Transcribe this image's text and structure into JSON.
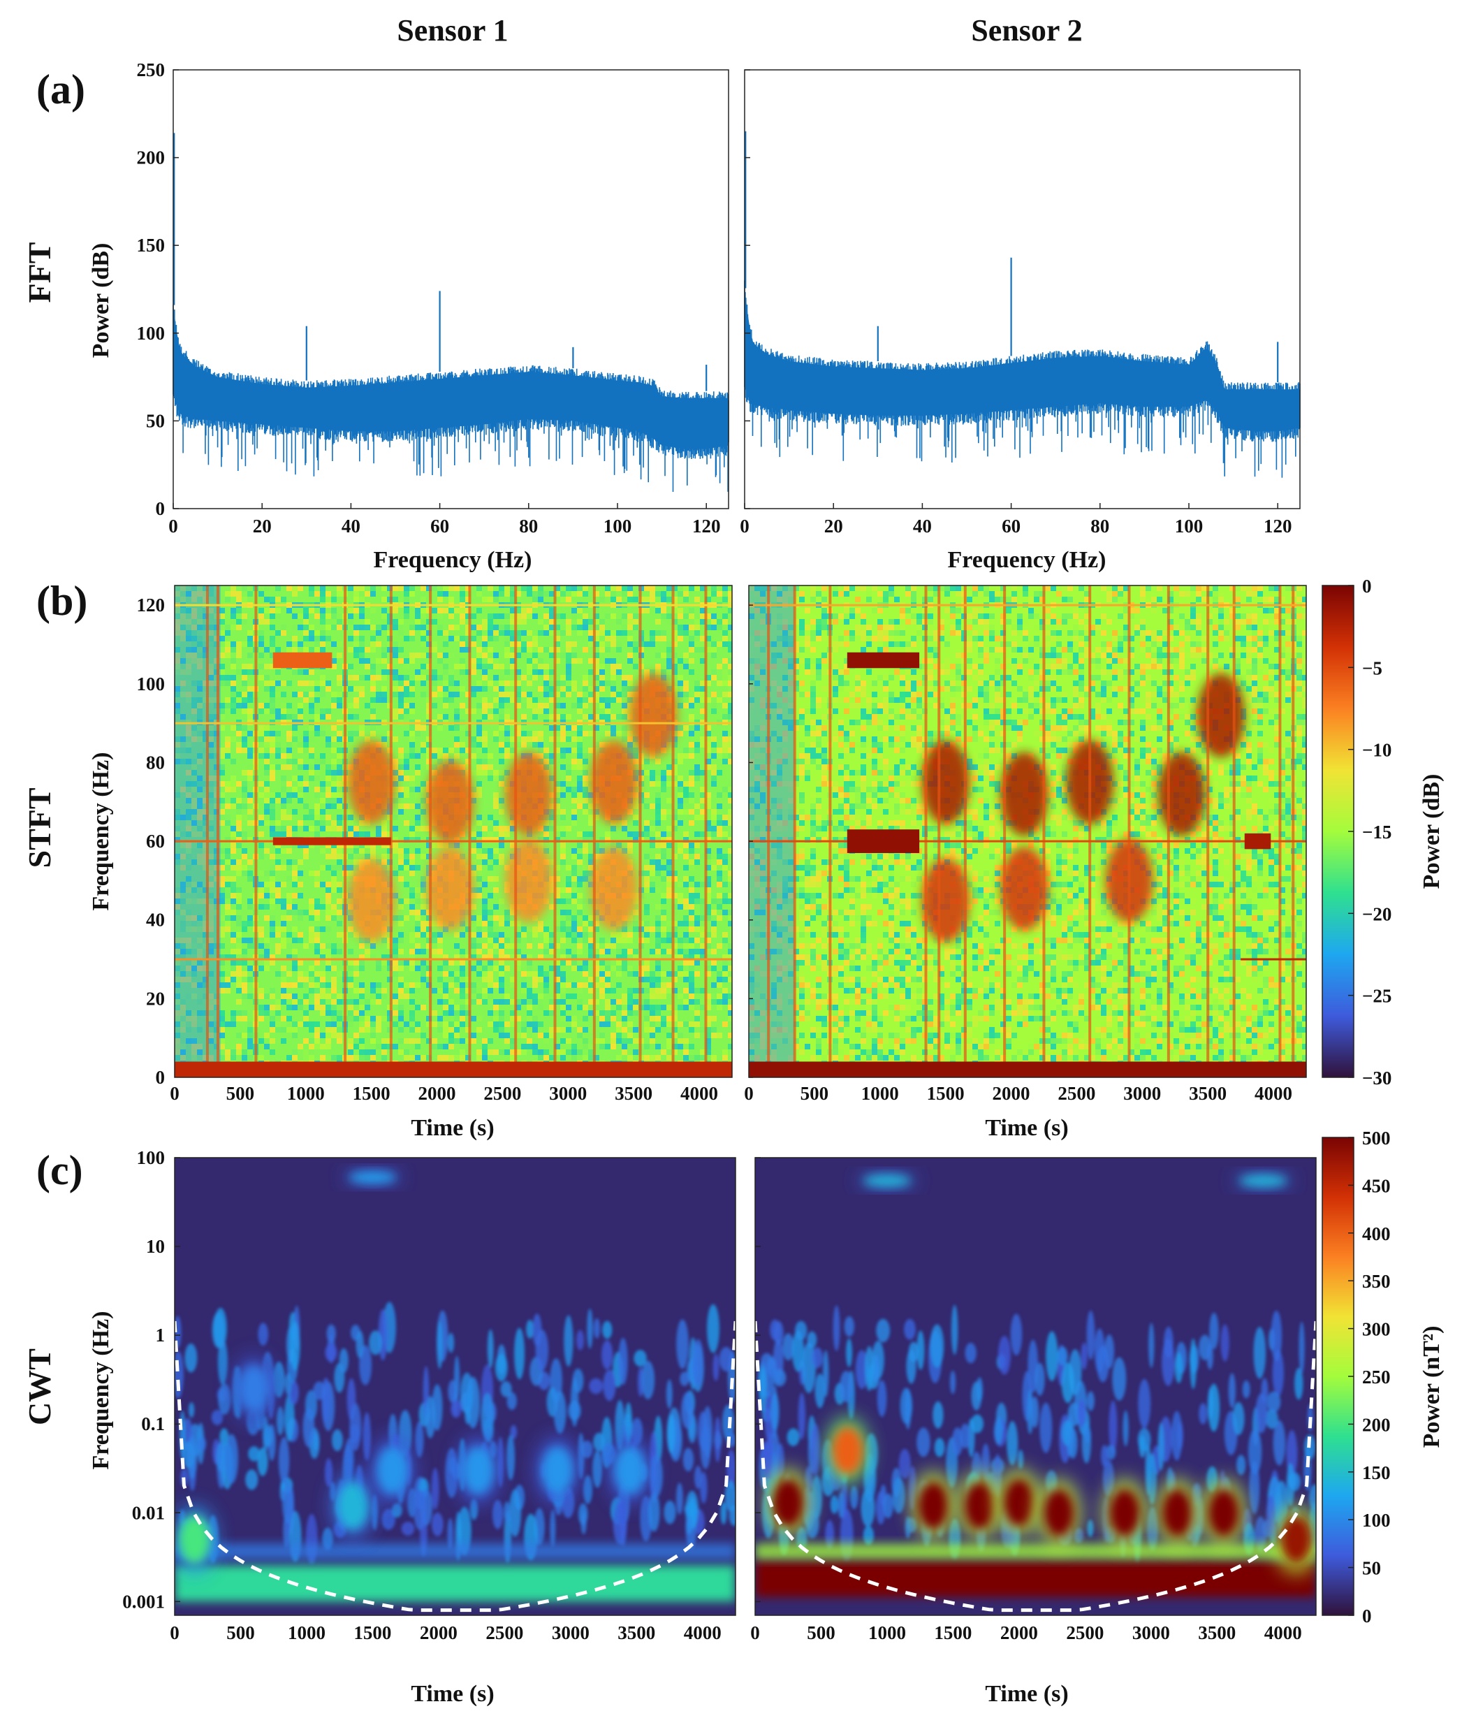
{
  "column_titles": [
    "Sensor 1",
    "Sensor 2"
  ],
  "row_titles": [
    "FFT",
    "STFT",
    "CWT"
  ],
  "panel_labels": [
    "(a)",
    "(b)",
    "(c)"
  ],
  "colors": {
    "fft_line": "#1272bf",
    "dash": "#ffffff",
    "colormap": [
      "#30123b",
      "#3e5bdc",
      "#1ea7f0",
      "#2fe08f",
      "#a4fc3c",
      "#f1e335",
      "#fb8022",
      "#d23105",
      "#7a0403"
    ]
  },
  "chart_data": [
    {
      "id": "fft",
      "type": "line",
      "title": "FFT",
      "xlabel": "Frequency (Hz)",
      "ylabel": "Power (dB)",
      "xlim": [
        0,
        125
      ],
      "ylim": [
        0,
        250
      ],
      "xticks": [
        0,
        20,
        40,
        60,
        80,
        100,
        120
      ],
      "yticks": [
        0,
        50,
        100,
        150,
        200,
        250
      ],
      "series": [
        {
          "name": "Sensor 1",
          "envelope_x": [
            0,
            1,
            2,
            5,
            10,
            20,
            30,
            40,
            50,
            60,
            70,
            80,
            90,
            100,
            105,
            108,
            110,
            115,
            120,
            125
          ],
          "envelope_upper": [
            120,
            100,
            92,
            85,
            79,
            75,
            73,
            74,
            76,
            78,
            80,
            82,
            80,
            77,
            76,
            74,
            68,
            67,
            67,
            67
          ],
          "envelope_lower": [
            60,
            50,
            47,
            45,
            44,
            42,
            40,
            38,
            38,
            40,
            42,
            45,
            44,
            40,
            38,
            34,
            30,
            28,
            28,
            30
          ],
          "peaks": [
            {
              "freq": 0.2,
              "power": 214
            },
            {
              "freq": 30,
              "power": 104
            },
            {
              "freq": 60,
              "power": 124
            },
            {
              "freq": 90,
              "power": 92
            },
            {
              "freq": 120,
              "power": 82
            }
          ]
        },
        {
          "name": "Sensor 2",
          "envelope_x": [
            0,
            1,
            2,
            5,
            10,
            20,
            30,
            40,
            50,
            60,
            70,
            80,
            90,
            100,
            104,
            106,
            108,
            115,
            120,
            125
          ],
          "envelope_upper": [
            130,
            108,
            98,
            92,
            88,
            85,
            84,
            83,
            84,
            87,
            90,
            91,
            88,
            86,
            96,
            88,
            72,
            72,
            72,
            72
          ],
          "envelope_lower": [
            64,
            56,
            53,
            52,
            50,
            48,
            47,
            47,
            48,
            50,
            52,
            54,
            52,
            52,
            56,
            50,
            40,
            38,
            38,
            40
          ],
          "peaks": [
            {
              "freq": 0.2,
              "power": 215
            },
            {
              "freq": 30,
              "power": 104
            },
            {
              "freq": 60,
              "power": 143
            },
            {
              "freq": 120,
              "power": 95
            }
          ]
        }
      ]
    },
    {
      "id": "stft",
      "type": "heatmap",
      "title": "STFT",
      "xlabel": "Time (s)",
      "ylabel": "Frequency (Hz)",
      "xlim": [
        0,
        4250
      ],
      "ylim": [
        0,
        125
      ],
      "xticks": [
        0,
        500,
        1000,
        1500,
        2000,
        2500,
        3000,
        3500,
        4000
      ],
      "yticks": [
        0,
        20,
        40,
        60,
        80,
        100,
        120
      ],
      "colorbar": {
        "label": "Power (dB)",
        "range": [
          -30,
          0
        ],
        "ticks": [
          0,
          -5,
          -10,
          -15,
          -20,
          -25,
          -30
        ]
      },
      "series": [
        {
          "name": "Sensor 1",
          "background_db": -16,
          "horizontal_lines": [
            {
              "freq": 60,
              "t_start": 0,
              "t_end": 4250,
              "db": -6
            },
            {
              "freq": 30,
              "t_start": 0,
              "t_end": 4250,
              "db": -8
            },
            {
              "freq": 90,
              "t_start": 0,
              "t_end": 4250,
              "db": -10
            },
            {
              "freq": 120,
              "t_start": 0,
              "t_end": 4250,
              "db": -11
            }
          ],
          "bands": [
            {
              "t_start": 750,
              "t_end": 1200,
              "f_low": 104,
              "f_high": 108,
              "db": -6
            },
            {
              "t_start": 750,
              "t_end": 1650,
              "f_low": 59,
              "f_high": 61,
              "db": -3
            }
          ],
          "blobs": [
            {
              "t": 1500,
              "f": 75,
              "db": -6
            },
            {
              "t": 1500,
              "f": 45,
              "db": -8
            },
            {
              "t": 2100,
              "f": 70,
              "db": -6
            },
            {
              "t": 2100,
              "f": 48,
              "db": -8
            },
            {
              "t": 2700,
              "f": 72,
              "db": -6
            },
            {
              "t": 2700,
              "f": 50,
              "db": -8
            },
            {
              "t": 3350,
              "f": 75,
              "db": -6
            },
            {
              "t": 3350,
              "f": 48,
              "db": -8
            },
            {
              "t": 3650,
              "f": 92,
              "db": -6
            }
          ],
          "vertical_stripes": [
            250,
            330,
            620,
            1300,
            1650,
            1950,
            2250,
            2600,
            2900,
            3200,
            3550,
            3800,
            4050
          ],
          "low_freq_band_db": -3
        },
        {
          "name": "Sensor 2",
          "background_db": -15,
          "horizontal_lines": [
            {
              "freq": 60,
              "t_start": 0,
              "t_end": 4250,
              "db": -5
            },
            {
              "freq": 30,
              "t_start": 3750,
              "t_end": 4250,
              "db": -3
            },
            {
              "freq": 120,
              "t_start": 0,
              "t_end": 4250,
              "db": -9
            }
          ],
          "bands": [
            {
              "t_start": 750,
              "t_end": 1300,
              "f_low": 104,
              "f_high": 108,
              "db": -1
            },
            {
              "t_start": 750,
              "t_end": 1300,
              "f_low": 57,
              "f_high": 63,
              "db": -1
            },
            {
              "t_start": 3780,
              "t_end": 3980,
              "f_low": 58,
              "f_high": 62,
              "db": -2
            }
          ],
          "blobs": [
            {
              "t": 1500,
              "f": 75,
              "db": -2
            },
            {
              "t": 1500,
              "f": 45,
              "db": -4
            },
            {
              "t": 2100,
              "f": 72,
              "db": -2
            },
            {
              "t": 2100,
              "f": 48,
              "db": -4
            },
            {
              "t": 2600,
              "f": 75,
              "db": -2
            },
            {
              "t": 2900,
              "f": 50,
              "db": -4
            },
            {
              "t": 3300,
              "f": 72,
              "db": -2
            },
            {
              "t": 3600,
              "f": 92,
              "db": -2
            }
          ],
          "vertical_stripes": [
            150,
            350,
            620,
            1350,
            1450,
            1650,
            1950,
            2250,
            2600,
            2900,
            3200,
            3500,
            3700,
            4050,
            4150
          ],
          "low_freq_band_db": -1
        }
      ]
    },
    {
      "id": "cwt",
      "type": "heatmap",
      "title": "CWT",
      "xlabel": "Time (s)",
      "ylabel": "Frequency (Hz)",
      "xlim": [
        0,
        4250
      ],
      "ylim": [
        0.0007,
        100
      ],
      "yscale": "log",
      "xticks": [
        0,
        500,
        1000,
        1500,
        2000,
        2500,
        3000,
        3500,
        4000
      ],
      "yticks": [
        0.001,
        0.01,
        0.1,
        1,
        10,
        100
      ],
      "ytick_labels": [
        "0.001",
        "0.01",
        "0.1",
        "1",
        "10",
        "100"
      ],
      "colorbar": {
        "label": "Power (nT²)",
        "range": [
          0,
          500
        ],
        "ticks": [
          500,
          450,
          400,
          350,
          300,
          250,
          200,
          150,
          100,
          50,
          0
        ]
      },
      "cone_of_influence": "dashed white",
      "series": [
        {
          "name": "Sensor 1",
          "hot_spots": [
            {
              "t": 1350,
              "f": 0.012,
              "power": 140
            },
            {
              "t": 1650,
              "f": 0.03,
              "power": 110
            },
            {
              "t": 2300,
              "f": 0.03,
              "power": 110
            },
            {
              "t": 2900,
              "f": 0.03,
              "power": 110
            },
            {
              "t": 3450,
              "f": 0.03,
              "power": 110
            },
            {
              "t": 600,
              "f": 0.25,
              "power": 90
            },
            {
              "t": 1500,
              "f": 60,
              "power": 120
            },
            {
              "t": 150,
              "f": 0.005,
              "power": 200
            }
          ],
          "low_freq_band": {
            "f": 0.0016,
            "power": 180
          }
        },
        {
          "name": "Sensor 2",
          "hot_spots": [
            {
              "t": 250,
              "f": 0.013,
              "power": 500
            },
            {
              "t": 700,
              "f": 0.05,
              "power": 400
            },
            {
              "t": 1350,
              "f": 0.012,
              "power": 500
            },
            {
              "t": 1700,
              "f": 0.012,
              "power": 500
            },
            {
              "t": 2000,
              "f": 0.013,
              "power": 500
            },
            {
              "t": 2300,
              "f": 0.01,
              "power": 500
            },
            {
              "t": 2800,
              "f": 0.01,
              "power": 500
            },
            {
              "t": 3200,
              "f": 0.01,
              "power": 500
            },
            {
              "t": 3550,
              "f": 0.01,
              "power": 500
            },
            {
              "t": 4100,
              "f": 0.005,
              "power": 480
            },
            {
              "t": 1000,
              "f": 55,
              "power": 140
            },
            {
              "t": 3850,
              "f": 55,
              "power": 140
            }
          ],
          "low_freq_band": {
            "f": 0.0018,
            "power": 500
          }
        }
      ]
    }
  ]
}
